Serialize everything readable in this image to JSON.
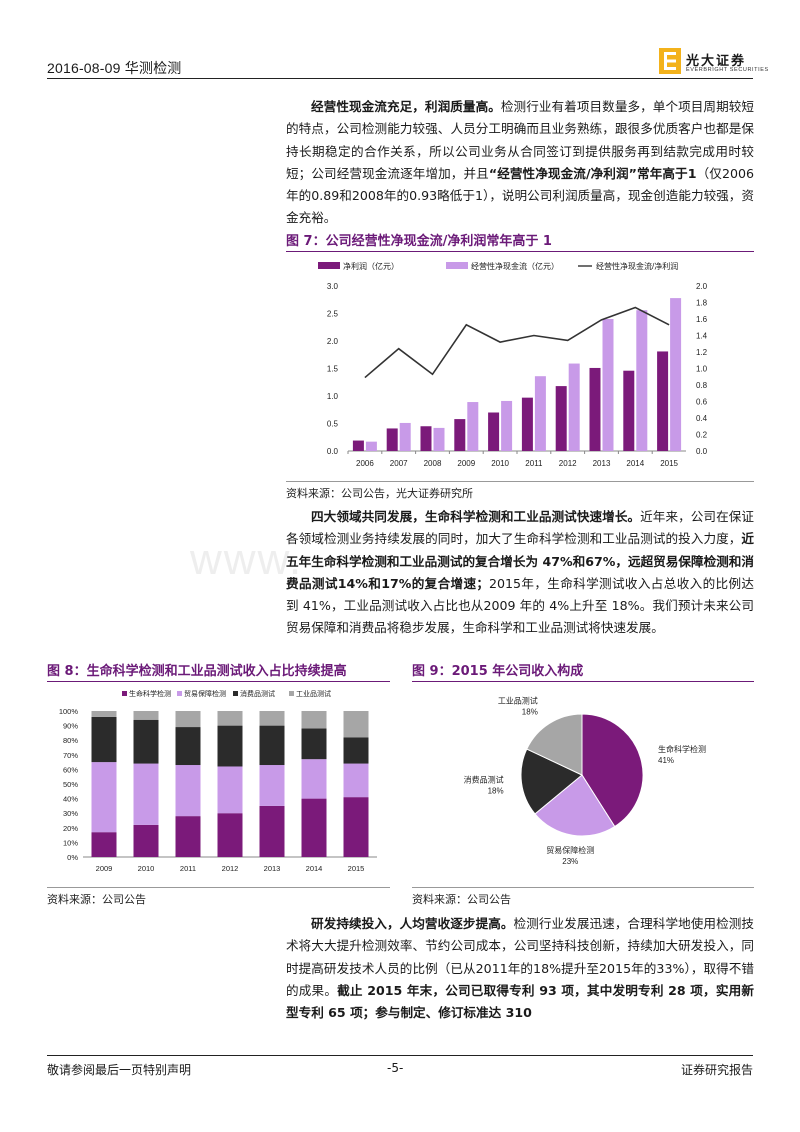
{
  "header": {
    "date_company": "2016-08-09   华测检测",
    "logo_cn": "光大证券",
    "logo_en": "EVERBRIGHT SECURITIES"
  },
  "watermark": "www.",
  "para1": {
    "b1": "经营性现金流充足，利润质量高。",
    "t1": "检测行业有着项目数量多，单个项目周期较短的特点，公司检测能力较强、人员分工明确而且业务熟练，跟很多优质客户也都是保持长期稳定的合作关系，所以公司业务从合同签订到提供服务再到结款完成用时较短；公司经营现金流逐年增加，并且",
    "b2": "“经营性净现金流/净利润”常年高于1",
    "t2": "（仅2006年的0.89和2008年的0.93略低于1），说明公司利润质量高，现金创造能力较强，资金充裕。"
  },
  "fig7": {
    "title": "图 7：公司经营性净现金流/净利润常年高于 1",
    "source": "资料来源：公司公告，光大证券研究所"
  },
  "para2": {
    "b1": "四大领域共同发展，生命科学检测和工业品测试快速增长。",
    "t1": "近年来，公司在保证各领域检测业务持续发展的同时，加大了生命科学检测和工业品测试的投入力度，",
    "b2": "近五年生命科学检测和工业品测试的复合增长为 47%和67%，远超贸易保障检测和消费品测试14%和17%的复合增速；",
    "t2": "2015年，生命科学测试收入占总收入的比例达到 41%，工业品测试收入占比也从2009 年的 4%上升至 18%。我们预计未来公司贸易保障和消费品将稳步发展，生命科学和工业品测试将快速发展。"
  },
  "fig8": {
    "title": "图 8：生命科学检测和工业品测试收入占比持续提高",
    "source": "资料来源：公司公告"
  },
  "fig9": {
    "title": "图 9：2015 年公司收入构成",
    "source": "资料来源：公司公告"
  },
  "para3": {
    "b1": "研发持续投入，人均营收逐步提高。",
    "t1": "检测行业发展迅速，合理科学地使用检测技术将大大提升检测效率、节约公司成本，公司坚持科技创新，持续加大研发投入，同时提高研发技术人员的比例（已从2011年的18%提升至2015年的33%），取得不错的成果。",
    "b2": "截止 2015 年末，公司已取得专利 93 项，其中发明专利 28 项，实用新型专利 65 项；参与制定、修订标准达 310"
  },
  "footer": {
    "left": "敬请参阅最后一页特别声明",
    "center": "-5-",
    "right": "证券研究报告"
  },
  "chart_data": [
    {
      "type": "bar",
      "categories": [
        "2006",
        "2007",
        "2008",
        "2009",
        "2010",
        "2011",
        "2012",
        "2013",
        "2014",
        "2015"
      ],
      "series": [
        {
          "name": "净利润（亿元）",
          "type": "bar",
          "axis": "left",
          "color": "#7b1a7a",
          "values": [
            0.19,
            0.41,
            0.45,
            0.58,
            0.7,
            0.97,
            1.18,
            1.51,
            1.46,
            1.81
          ]
        },
        {
          "name": "经营性净现金流（亿元）",
          "type": "bar",
          "axis": "left",
          "color": "#c89ae8",
          "values": [
            0.17,
            0.51,
            0.42,
            0.89,
            0.91,
            1.36,
            1.59,
            2.4,
            2.56,
            2.78
          ]
        },
        {
          "name": "经营性净现金流/净利润",
          "type": "line",
          "axis": "right",
          "color": "#333333",
          "values": [
            0.89,
            1.24,
            0.93,
            1.53,
            1.32,
            1.4,
            1.34,
            1.59,
            1.74,
            1.53
          ]
        }
      ],
      "ylim": [
        0,
        3.0
      ],
      "yticks": [
        "0.0",
        "0.5",
        "1.0",
        "1.5",
        "2.0",
        "2.5",
        "3.0"
      ],
      "y2lim": [
        0,
        2.0
      ],
      "y2ticks": [
        "0.0",
        "0.2",
        "0.4",
        "0.6",
        "0.8",
        "1.0",
        "1.2",
        "1.4",
        "1.6",
        "1.8",
        "2.0"
      ],
      "legend": "top"
    },
    {
      "type": "bar",
      "stacked": true,
      "categories": [
        "2009",
        "2010",
        "2011",
        "2012",
        "2013",
        "2014",
        "2015"
      ],
      "series": [
        {
          "name": "生命科学检测",
          "color": "#7b1a7a",
          "values": [
            17,
            22,
            28,
            30,
            35,
            40,
            41
          ]
        },
        {
          "name": "贸易保障检测",
          "color": "#c89ae8",
          "values": [
            48,
            42,
            35,
            32,
            28,
            27,
            23
          ]
        },
        {
          "name": "消费品测试",
          "color": "#2b2b2b",
          "values": [
            31,
            30,
            26,
            28,
            27,
            21,
            18
          ]
        },
        {
          "name": "工业品测试",
          "color": "#a6a6a6",
          "values": [
            4,
            6,
            11,
            10,
            10,
            12,
            18
          ]
        }
      ],
      "ylim": [
        0,
        100
      ],
      "yticks": [
        "0%",
        "10%",
        "20%",
        "30%",
        "40%",
        "50%",
        "60%",
        "70%",
        "80%",
        "90%",
        "100%"
      ],
      "legend": "top"
    },
    {
      "type": "pie",
      "slices": [
        {
          "name": "生命科学检测",
          "value": 41,
          "label": "41%",
          "color": "#7b1a7a"
        },
        {
          "name": "贸易保障检测",
          "value": 23,
          "label": "23%",
          "color": "#c89ae8"
        },
        {
          "name": "消费品测试",
          "value": 18,
          "label": "18%",
          "color": "#2b2b2b"
        },
        {
          "name": "工业品测试",
          "value": 18,
          "label": "18%",
          "color": "#a6a6a6"
        }
      ]
    }
  ]
}
